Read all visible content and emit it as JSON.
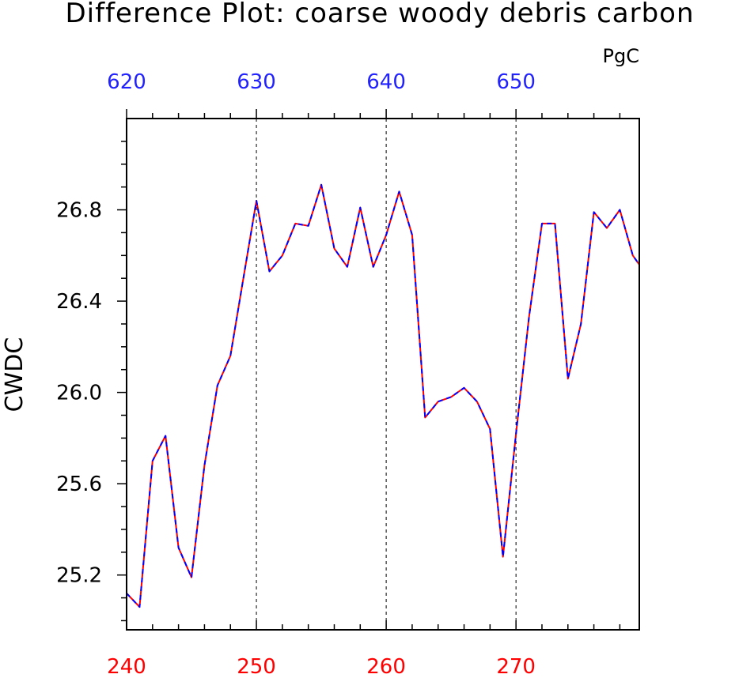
{
  "chart_data": {
    "type": "line",
    "title": "Difference Plot: coarse woody debris carbon",
    "units": "PgC",
    "ylabel": "CWDC",
    "xlabel": "",
    "xlim": [
      240,
      279.5
    ],
    "ylim": [
      24.96,
      27.2
    ],
    "bottom_axis": {
      "ticks": [
        240,
        250,
        260,
        270
      ],
      "labels": [
        "240",
        "250",
        "260",
        "270"
      ],
      "color": "#ff0000"
    },
    "top_axis": {
      "ticks": [
        620,
        630,
        640,
        650
      ],
      "labels": [
        "620",
        "630",
        "640",
        "650"
      ],
      "color": "#2222ff"
    },
    "left_axis": {
      "ticks": [
        25.2,
        25.6,
        26.0,
        26.4,
        26.8
      ],
      "labels": [
        "25.2",
        "25.6",
        "26.0",
        "26.4",
        "26.8"
      ]
    },
    "vertical_gridlines_at_x": [
      250,
      260,
      270
    ],
    "series": [
      {
        "color": "#ff0000",
        "style": "solid",
        "x": [
          240,
          241,
          242,
          243,
          244,
          245,
          246,
          247,
          248,
          249,
          250,
          251,
          252,
          253,
          254,
          255,
          256,
          257,
          258,
          259,
          260,
          261,
          262,
          263,
          264,
          265,
          266,
          267,
          268,
          269,
          270,
          271,
          272,
          273,
          274,
          275,
          276,
          277,
          278,
          279,
          279.5
        ],
        "y": [
          25.12,
          25.06,
          25.7,
          25.81,
          25.32,
          25.19,
          25.68,
          26.03,
          26.16,
          26.5,
          26.84,
          26.53,
          26.6,
          26.74,
          26.73,
          26.91,
          26.63,
          26.55,
          26.81,
          26.55,
          26.69,
          26.88,
          26.69,
          25.89,
          25.96,
          25.98,
          26.02,
          25.96,
          25.84,
          25.28,
          25.82,
          26.33,
          26.74,
          26.74,
          26.06,
          26.3,
          26.79,
          26.72,
          26.8,
          26.6,
          26.56
        ]
      },
      {
        "color": "#0000ff",
        "style": "dashed",
        "x": [
          240,
          241,
          242,
          243,
          244,
          245,
          246,
          247,
          248,
          249,
          250,
          251,
          252,
          253,
          254,
          255,
          256,
          257,
          258,
          259,
          260,
          261,
          262,
          263,
          264,
          265,
          266,
          267,
          268,
          269,
          270,
          271,
          272,
          273,
          274,
          275,
          276,
          277,
          278,
          279,
          279.5
        ],
        "y": [
          25.12,
          25.06,
          25.7,
          25.81,
          25.32,
          25.19,
          25.68,
          26.03,
          26.16,
          26.5,
          26.84,
          26.53,
          26.6,
          26.74,
          26.73,
          26.91,
          26.63,
          26.55,
          26.81,
          26.55,
          26.69,
          26.88,
          26.69,
          25.89,
          25.96,
          25.98,
          26.02,
          25.96,
          25.84,
          25.28,
          25.82,
          26.33,
          26.74,
          26.74,
          26.06,
          26.3,
          26.79,
          26.72,
          26.8,
          26.6,
          26.56
        ]
      }
    ]
  }
}
